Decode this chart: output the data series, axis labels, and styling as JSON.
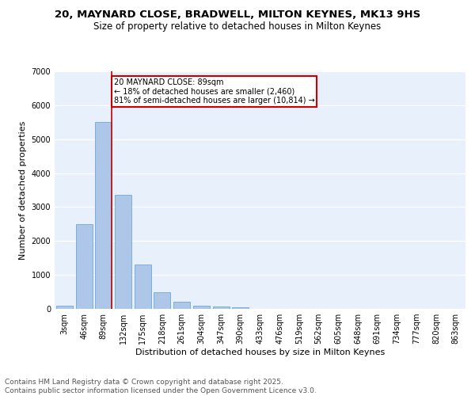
{
  "title_line1": "20, MAYNARD CLOSE, BRADWELL, MILTON KEYNES, MK13 9HS",
  "title_line2": "Size of property relative to detached houses in Milton Keynes",
  "xlabel": "Distribution of detached houses by size in Milton Keynes",
  "ylabel": "Number of detached properties",
  "bin_labels": [
    "3sqm",
    "46sqm",
    "89sqm",
    "132sqm",
    "175sqm",
    "218sqm",
    "261sqm",
    "304sqm",
    "347sqm",
    "390sqm",
    "433sqm",
    "476sqm",
    "519sqm",
    "562sqm",
    "605sqm",
    "648sqm",
    "691sqm",
    "734sqm",
    "777sqm",
    "820sqm",
    "863sqm"
  ],
  "bar_values": [
    100,
    2500,
    5500,
    3350,
    1300,
    500,
    210,
    105,
    80,
    50,
    0,
    0,
    0,
    0,
    0,
    0,
    0,
    0,
    0,
    0,
    0
  ],
  "bar_color": "#aec6e8",
  "bar_edge_color": "#5a9fd4",
  "vline_index": 2,
  "vline_color": "#cc0000",
  "annotation_text": "20 MAYNARD CLOSE: 89sqm\n← 18% of detached houses are smaller (2,460)\n81% of semi-detached houses are larger (10,814) →",
  "annotation_box_edgecolor": "#cc0000",
  "annotation_box_facecolor": "#ffffff",
  "ylim": [
    0,
    7000
  ],
  "yticks": [
    0,
    1000,
    2000,
    3000,
    4000,
    5000,
    6000,
    7000
  ],
  "footer_text": "Contains HM Land Registry data © Crown copyright and database right 2025.\nContains public sector information licensed under the Open Government Licence v3.0.",
  "bg_color": "#e8f0fb",
  "fig_bg_color": "#ffffff",
  "grid_color": "#ffffff",
  "title_fontsize": 9.5,
  "subtitle_fontsize": 8.5,
  "axis_label_fontsize": 8,
  "tick_fontsize": 7,
  "annotation_fontsize": 7,
  "footer_fontsize": 6.5
}
